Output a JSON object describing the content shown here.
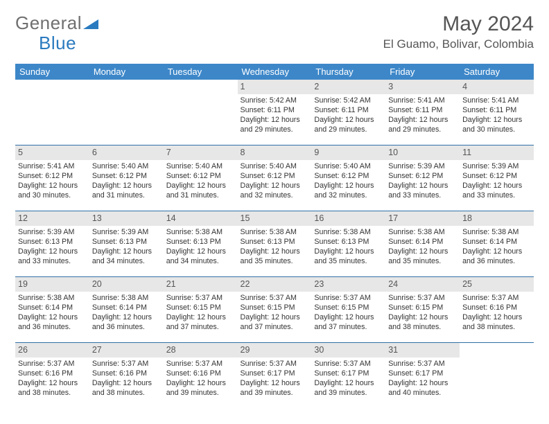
{
  "brand": {
    "part1": "General",
    "part2": "Blue"
  },
  "header": {
    "month_title": "May 2024",
    "location": "El Guamo, Bolivar, Colombia"
  },
  "colors": {
    "header_bg": "#3d87c9",
    "row_divider": "#2f6fa8",
    "daynum_bg": "#e7e7e7",
    "brand_gray": "#6f6f6f",
    "brand_blue": "#2a7abf"
  },
  "weekday_headers": [
    "Sunday",
    "Monday",
    "Tuesday",
    "Wednesday",
    "Thursday",
    "Friday",
    "Saturday"
  ],
  "weeks": [
    [
      {
        "blank": true
      },
      {
        "blank": true
      },
      {
        "blank": true
      },
      {
        "day": "1",
        "sunrise": "Sunrise: 5:42 AM",
        "sunset": "Sunset: 6:11 PM",
        "dl1": "Daylight: 12 hours",
        "dl2": "and 29 minutes."
      },
      {
        "day": "2",
        "sunrise": "Sunrise: 5:42 AM",
        "sunset": "Sunset: 6:11 PM",
        "dl1": "Daylight: 12 hours",
        "dl2": "and 29 minutes."
      },
      {
        "day": "3",
        "sunrise": "Sunrise: 5:41 AM",
        "sunset": "Sunset: 6:11 PM",
        "dl1": "Daylight: 12 hours",
        "dl2": "and 29 minutes."
      },
      {
        "day": "4",
        "sunrise": "Sunrise: 5:41 AM",
        "sunset": "Sunset: 6:11 PM",
        "dl1": "Daylight: 12 hours",
        "dl2": "and 30 minutes."
      }
    ],
    [
      {
        "day": "5",
        "sunrise": "Sunrise: 5:41 AM",
        "sunset": "Sunset: 6:12 PM",
        "dl1": "Daylight: 12 hours",
        "dl2": "and 30 minutes."
      },
      {
        "day": "6",
        "sunrise": "Sunrise: 5:40 AM",
        "sunset": "Sunset: 6:12 PM",
        "dl1": "Daylight: 12 hours",
        "dl2": "and 31 minutes."
      },
      {
        "day": "7",
        "sunrise": "Sunrise: 5:40 AM",
        "sunset": "Sunset: 6:12 PM",
        "dl1": "Daylight: 12 hours",
        "dl2": "and 31 minutes."
      },
      {
        "day": "8",
        "sunrise": "Sunrise: 5:40 AM",
        "sunset": "Sunset: 6:12 PM",
        "dl1": "Daylight: 12 hours",
        "dl2": "and 32 minutes."
      },
      {
        "day": "9",
        "sunrise": "Sunrise: 5:40 AM",
        "sunset": "Sunset: 6:12 PM",
        "dl1": "Daylight: 12 hours",
        "dl2": "and 32 minutes."
      },
      {
        "day": "10",
        "sunrise": "Sunrise: 5:39 AM",
        "sunset": "Sunset: 6:12 PM",
        "dl1": "Daylight: 12 hours",
        "dl2": "and 33 minutes."
      },
      {
        "day": "11",
        "sunrise": "Sunrise: 5:39 AM",
        "sunset": "Sunset: 6:12 PM",
        "dl1": "Daylight: 12 hours",
        "dl2": "and 33 minutes."
      }
    ],
    [
      {
        "day": "12",
        "sunrise": "Sunrise: 5:39 AM",
        "sunset": "Sunset: 6:13 PM",
        "dl1": "Daylight: 12 hours",
        "dl2": "and 33 minutes."
      },
      {
        "day": "13",
        "sunrise": "Sunrise: 5:39 AM",
        "sunset": "Sunset: 6:13 PM",
        "dl1": "Daylight: 12 hours",
        "dl2": "and 34 minutes."
      },
      {
        "day": "14",
        "sunrise": "Sunrise: 5:38 AM",
        "sunset": "Sunset: 6:13 PM",
        "dl1": "Daylight: 12 hours",
        "dl2": "and 34 minutes."
      },
      {
        "day": "15",
        "sunrise": "Sunrise: 5:38 AM",
        "sunset": "Sunset: 6:13 PM",
        "dl1": "Daylight: 12 hours",
        "dl2": "and 35 minutes."
      },
      {
        "day": "16",
        "sunrise": "Sunrise: 5:38 AM",
        "sunset": "Sunset: 6:13 PM",
        "dl1": "Daylight: 12 hours",
        "dl2": "and 35 minutes."
      },
      {
        "day": "17",
        "sunrise": "Sunrise: 5:38 AM",
        "sunset": "Sunset: 6:14 PM",
        "dl1": "Daylight: 12 hours",
        "dl2": "and 35 minutes."
      },
      {
        "day": "18",
        "sunrise": "Sunrise: 5:38 AM",
        "sunset": "Sunset: 6:14 PM",
        "dl1": "Daylight: 12 hours",
        "dl2": "and 36 minutes."
      }
    ],
    [
      {
        "day": "19",
        "sunrise": "Sunrise: 5:38 AM",
        "sunset": "Sunset: 6:14 PM",
        "dl1": "Daylight: 12 hours",
        "dl2": "and 36 minutes."
      },
      {
        "day": "20",
        "sunrise": "Sunrise: 5:38 AM",
        "sunset": "Sunset: 6:14 PM",
        "dl1": "Daylight: 12 hours",
        "dl2": "and 36 minutes."
      },
      {
        "day": "21",
        "sunrise": "Sunrise: 5:37 AM",
        "sunset": "Sunset: 6:15 PM",
        "dl1": "Daylight: 12 hours",
        "dl2": "and 37 minutes."
      },
      {
        "day": "22",
        "sunrise": "Sunrise: 5:37 AM",
        "sunset": "Sunset: 6:15 PM",
        "dl1": "Daylight: 12 hours",
        "dl2": "and 37 minutes."
      },
      {
        "day": "23",
        "sunrise": "Sunrise: 5:37 AM",
        "sunset": "Sunset: 6:15 PM",
        "dl1": "Daylight: 12 hours",
        "dl2": "and 37 minutes."
      },
      {
        "day": "24",
        "sunrise": "Sunrise: 5:37 AM",
        "sunset": "Sunset: 6:15 PM",
        "dl1": "Daylight: 12 hours",
        "dl2": "and 38 minutes."
      },
      {
        "day": "25",
        "sunrise": "Sunrise: 5:37 AM",
        "sunset": "Sunset: 6:16 PM",
        "dl1": "Daylight: 12 hours",
        "dl2": "and 38 minutes."
      }
    ],
    [
      {
        "day": "26",
        "sunrise": "Sunrise: 5:37 AM",
        "sunset": "Sunset: 6:16 PM",
        "dl1": "Daylight: 12 hours",
        "dl2": "and 38 minutes."
      },
      {
        "day": "27",
        "sunrise": "Sunrise: 5:37 AM",
        "sunset": "Sunset: 6:16 PM",
        "dl1": "Daylight: 12 hours",
        "dl2": "and 38 minutes."
      },
      {
        "day": "28",
        "sunrise": "Sunrise: 5:37 AM",
        "sunset": "Sunset: 6:16 PM",
        "dl1": "Daylight: 12 hours",
        "dl2": "and 39 minutes."
      },
      {
        "day": "29",
        "sunrise": "Sunrise: 5:37 AM",
        "sunset": "Sunset: 6:17 PM",
        "dl1": "Daylight: 12 hours",
        "dl2": "and 39 minutes."
      },
      {
        "day": "30",
        "sunrise": "Sunrise: 5:37 AM",
        "sunset": "Sunset: 6:17 PM",
        "dl1": "Daylight: 12 hours",
        "dl2": "and 39 minutes."
      },
      {
        "day": "31",
        "sunrise": "Sunrise: 5:37 AM",
        "sunset": "Sunset: 6:17 PM",
        "dl1": "Daylight: 12 hours",
        "dl2": "and 40 minutes."
      },
      {
        "blank": true
      }
    ]
  ]
}
